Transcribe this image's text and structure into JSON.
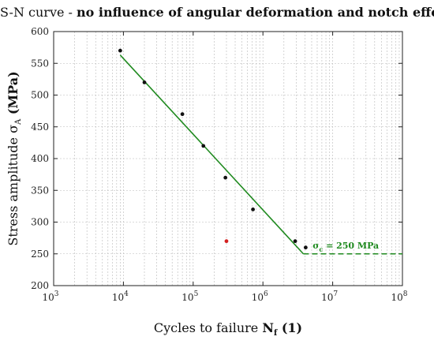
{
  "title": {
    "prefix": "S-N curve - ",
    "bold": "no influence of angular deformation and notch effect"
  },
  "chart_data": {
    "type": "scatter",
    "xscale": "log",
    "xlim": [
      1000,
      100000000
    ],
    "ylim": [
      200,
      600
    ],
    "yticks": [
      200,
      250,
      300,
      350,
      400,
      450,
      500,
      550,
      600
    ],
    "xtick_exponents": [
      "3",
      "4",
      "5",
      "6",
      "7",
      "8"
    ],
    "xlabel": {
      "text": "Cycles to failure ",
      "bold": "N",
      "sub": "f",
      "bold_suffix": " (1)"
    },
    "ylabel": {
      "text": "Stress amplitude σ",
      "sub": "A",
      "bold_suffix": " (MPa)"
    },
    "grid": true,
    "series": [
      {
        "marker_color": "#111111",
        "points": [
          [
            9000,
            570
          ],
          [
            20000,
            520
          ],
          [
            70000,
            470
          ],
          [
            140000,
            420
          ],
          [
            290000,
            370
          ],
          [
            720000,
            320
          ],
          [
            2900000,
            270
          ],
          [
            4100000,
            260
          ]
        ]
      },
      {
        "marker_color": "#d42020",
        "points": [
          [
            300000,
            270
          ]
        ]
      }
    ],
    "fit_line": {
      "color": "#1f8a1f",
      "points": [
        [
          9000,
          563
        ],
        [
          3800000,
          250
        ]
      ]
    },
    "endurance_line": {
      "color": "#1f8a1f",
      "style": "dashed",
      "y": 250,
      "x_start": 3800000,
      "x_end": 100000000
    },
    "annotation": {
      "symbol": "σ",
      "sub": "c",
      "text": " = 250 MPa",
      "x": 20000000,
      "y": 250
    }
  }
}
